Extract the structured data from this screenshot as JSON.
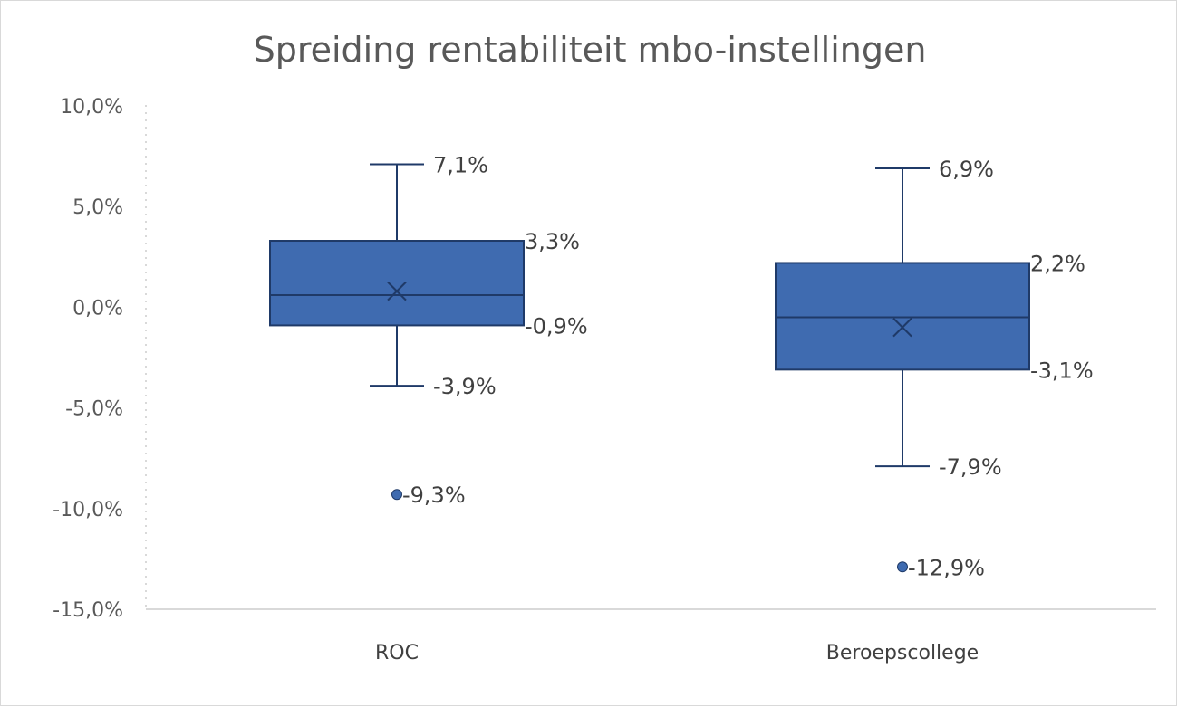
{
  "chart_data": {
    "type": "box",
    "title": "Spreiding rentabiliteit mbo-instellingen",
    "ylim": [
      -15,
      10
    ],
    "y_ticks": [
      10,
      5,
      0,
      -5,
      -10,
      -15
    ],
    "y_tick_labels": [
      "10,0%",
      "5,0%",
      "0,0%",
      "-5,0%",
      "-10,0%",
      "-15,0%"
    ],
    "grid": false,
    "legend": "none",
    "box_color": "#3f6bb0",
    "box_edge_color": "#1f3a68",
    "categories": [
      "ROC",
      "Beroepscollege"
    ],
    "boxes": [
      {
        "category": "ROC",
        "whisker_max": 7.1,
        "q3": 3.3,
        "median": 0.6,
        "mean": 0.8,
        "q1": -0.9,
        "whisker_min": -3.9,
        "outliers": [
          -9.3
        ],
        "labels": {
          "whisker_max": "7,1%",
          "q3": "3,3%",
          "q1": "-0,9%",
          "whisker_min": "-3,9%",
          "outliers": [
            "-9,3%"
          ]
        }
      },
      {
        "category": "Beroepscollege",
        "whisker_max": 6.9,
        "q3": 2.2,
        "median": -0.5,
        "mean": -1.0,
        "q1": -3.1,
        "whisker_min": -7.9,
        "outliers": [
          -12.9
        ],
        "labels": {
          "whisker_max": "6,9%",
          "q3": "2,2%",
          "q1": "-3,1%",
          "whisker_min": "-7,9%",
          "outliers": [
            "-12,9%"
          ]
        }
      }
    ]
  }
}
